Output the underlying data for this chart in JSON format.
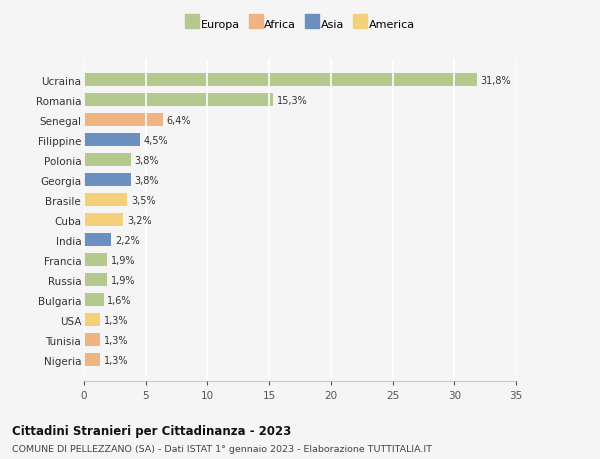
{
  "countries": [
    "Ucraina",
    "Romania",
    "Senegal",
    "Filippine",
    "Polonia",
    "Georgia",
    "Brasile",
    "Cuba",
    "India",
    "Francia",
    "Russia",
    "Bulgaria",
    "USA",
    "Tunisia",
    "Nigeria"
  ],
  "values": [
    31.8,
    15.3,
    6.4,
    4.5,
    3.8,
    3.8,
    3.5,
    3.2,
    2.2,
    1.9,
    1.9,
    1.6,
    1.3,
    1.3,
    1.3
  ],
  "labels": [
    "31,8%",
    "15,3%",
    "6,4%",
    "4,5%",
    "3,8%",
    "3,8%",
    "3,5%",
    "3,2%",
    "2,2%",
    "1,9%",
    "1,9%",
    "1,6%",
    "1,3%",
    "1,3%",
    "1,3%"
  ],
  "colors": [
    "#b5c98e",
    "#b5c98e",
    "#f0b482",
    "#6b8fbe",
    "#b5c98e",
    "#6b8fbe",
    "#f5d07a",
    "#f5d07a",
    "#6b8fbe",
    "#b5c98e",
    "#b5c98e",
    "#b5c98e",
    "#f5d07a",
    "#f0b482",
    "#f0b482"
  ],
  "legend_labels": [
    "Europa",
    "Africa",
    "Asia",
    "America"
  ],
  "legend_colors": [
    "#b5c98e",
    "#f0b482",
    "#6b8fbe",
    "#f5d07a"
  ],
  "xlim": [
    0,
    35
  ],
  "xticks": [
    0,
    5,
    10,
    15,
    20,
    25,
    30,
    35
  ],
  "title": "Cittadini Stranieri per Cittadinanza - 2023",
  "subtitle": "COMUNE DI PELLEZZANO (SA) - Dati ISTAT 1° gennaio 2023 - Elaborazione TUTTITALIA.IT",
  "background_color": "#f5f5f5",
  "grid_color": "#ffffff",
  "bar_height": 0.65,
  "figsize": [
    6.0,
    4.6
  ],
  "dpi": 100
}
